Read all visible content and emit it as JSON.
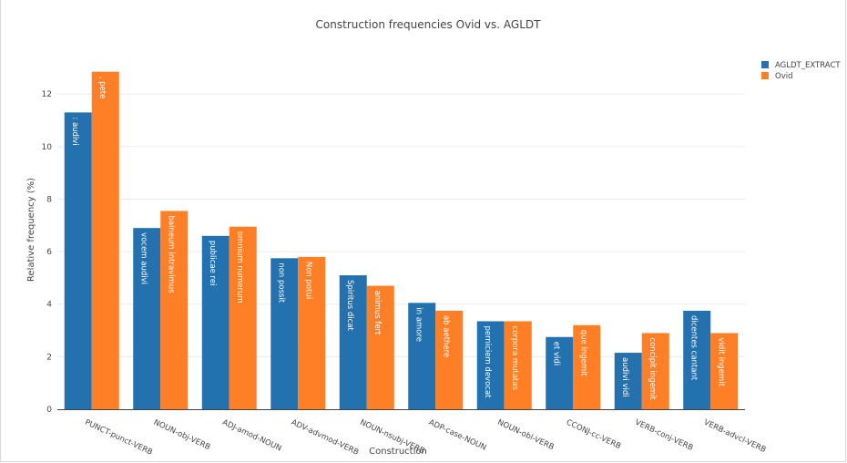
{
  "chart_data": {
    "type": "bar",
    "title": "Construction frequencies Ovid vs. AGLDT",
    "xlabel": "Construction",
    "ylabel": "Relative frequency (%)",
    "ylim": [
      0,
      13.5
    ],
    "yticks": [
      0,
      2,
      4,
      6,
      8,
      10,
      12
    ],
    "grid": true,
    "legend_position": "top-right",
    "categories": [
      "PUNCT-punct-VERB",
      "NOUN-obj-VERB",
      "ADJ-amod-NOUN",
      "ADV-advmod-VERB",
      "NOUN-nsubj-VERB",
      "ADP-case-NOUN",
      "NOUN-obl-VERB",
      "CCONJ-cc-VERB",
      "VERB-conj-VERB",
      "VERB-advcl-VERB"
    ],
    "series": [
      {
        "name": "AGLDT_EXTRACT",
        "color": "#2471b0",
        "values": [
          11.3,
          6.9,
          6.6,
          5.75,
          5.1,
          4.05,
          3.35,
          2.75,
          2.15,
          3.75
        ],
        "labels": [
          ": audivi",
          "vocem audivi",
          "publicae rei",
          "non possit",
          "Spiritus dicat",
          "in amore",
          "perniciem devocat",
          "et vidi",
          "audivi vidi",
          "dicentes cantant"
        ]
      },
      {
        "name": "Ovid",
        "color": "#ff7f27",
        "values": [
          12.85,
          7.55,
          6.95,
          5.8,
          4.7,
          3.75,
          3.35,
          3.2,
          2.9,
          2.9
        ],
        "labels": [
          ", pete",
          "balneum intravimus",
          "omnium numerum",
          "Non potui",
          "animus fert",
          "ab aethere",
          "corpora mutatas",
          "que ingemit",
          "concipit ingemit",
          "vidit ingemit"
        ]
      }
    ]
  }
}
